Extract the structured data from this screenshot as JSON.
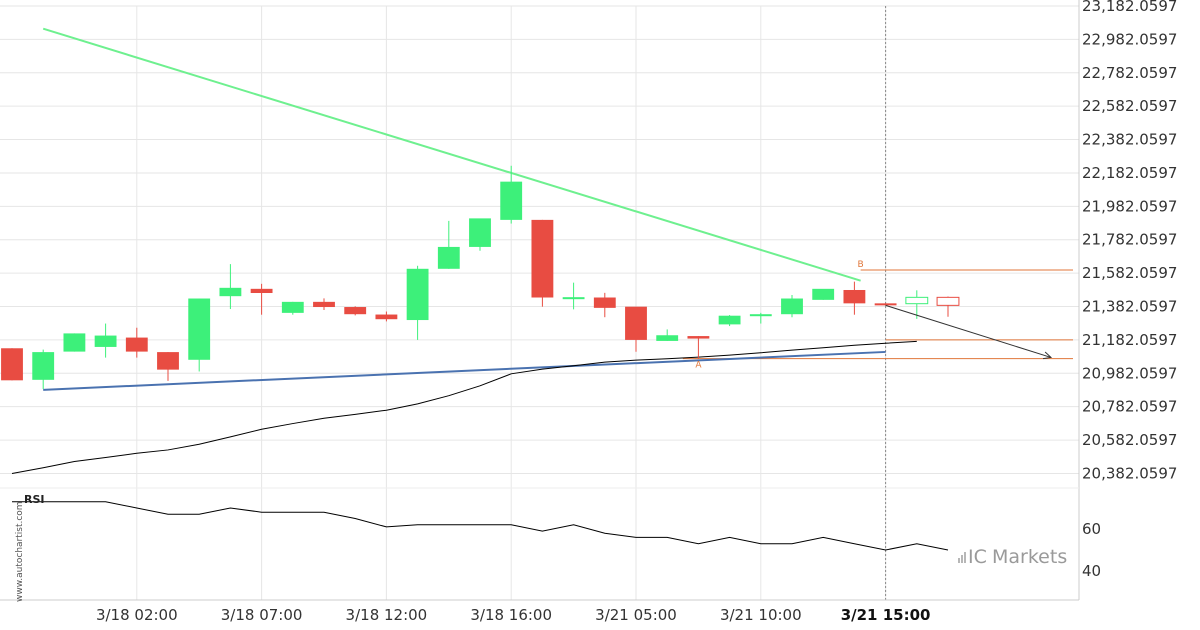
{
  "colors": {
    "up": "#3df07a",
    "down": "#e84c42",
    "resistance": "#6ef08f",
    "support": "#4a72b0",
    "moving_average": "#000000",
    "rsi_line": "#000000",
    "pattern_lines": "#e0763a",
    "forecast_arrow": "#333333",
    "grid": "#e6e6e6",
    "marker": "#888888"
  },
  "watermark": "www.autochartist.com",
  "brand": {
    "prefix": "IC",
    "suffix": "Markets",
    "icon": "bar-chart-icon"
  },
  "rsi_panel": {
    "label": "RSI",
    "ticks": [
      "60",
      "40"
    ]
  },
  "pattern_points": {
    "a": "A",
    "b": "B"
  },
  "chart_data": {
    "type": "candlestick",
    "ylim": [
      20307,
      23182.0597
    ],
    "yticks": [
      "23,182.0597",
      "22,982.0597",
      "22,782.0597",
      "22,582.0597",
      "22,382.0597",
      "22,182.0597",
      "21,982.0597",
      "21,782.0597",
      "21,582.0597",
      "21,382.0597",
      "21,182.0597",
      "20,982.0597",
      "20,782.0597",
      "20,582.0597",
      "20,382.0597"
    ],
    "xticks": [
      {
        "label": "3/18 02:00",
        "index": 4,
        "bold": false
      },
      {
        "label": "3/18 07:00",
        "index": 8,
        "bold": false
      },
      {
        "label": "3/18 12:00",
        "index": 12,
        "bold": false
      },
      {
        "label": "3/18 16:00",
        "index": 16,
        "bold": false
      },
      {
        "label": "3/21 05:00",
        "index": 20,
        "bold": false
      },
      {
        "label": "3/21 10:00",
        "index": 24,
        "bold": false
      },
      {
        "label": "3/21 15:00",
        "index": 28,
        "bold": true
      }
    ],
    "candles": [
      {
        "o": 21132,
        "h": 21132,
        "l": 20940,
        "c": 20940
      },
      {
        "o": 20943,
        "h": 21124,
        "l": 20888,
        "c": 21109
      },
      {
        "o": 21112,
        "h": 21221,
        "l": 21112,
        "c": 21221
      },
      {
        "o": 21140,
        "h": 21280,
        "l": 21076,
        "c": 21208
      },
      {
        "o": 21196,
        "h": 21255,
        "l": 21076,
        "c": 21112
      },
      {
        "o": 21109,
        "h": 21109,
        "l": 20937,
        "c": 21004
      },
      {
        "o": 21063,
        "h": 21430,
        "l": 20993,
        "c": 21430
      },
      {
        "o": 21444,
        "h": 21636,
        "l": 21367,
        "c": 21494
      },
      {
        "o": 21488,
        "h": 21518,
        "l": 21333,
        "c": 21463
      },
      {
        "o": 21344,
        "h": 21410,
        "l": 21333,
        "c": 21410
      },
      {
        "o": 21410,
        "h": 21431,
        "l": 21361,
        "c": 21379
      },
      {
        "o": 21379,
        "h": 21383,
        "l": 21329,
        "c": 21336
      },
      {
        "o": 21334,
        "h": 21352,
        "l": 21293,
        "c": 21306
      },
      {
        "o": 21301,
        "h": 21626,
        "l": 21182,
        "c": 21608
      },
      {
        "o": 21608,
        "h": 21895,
        "l": 21608,
        "c": 21739
      },
      {
        "o": 21739,
        "h": 21905,
        "l": 21716,
        "c": 21910
      },
      {
        "o": 21901,
        "h": 22225,
        "l": 21879,
        "c": 22130
      },
      {
        "o": 21901,
        "h": 21901,
        "l": 21381,
        "c": 21436
      },
      {
        "o": 21428,
        "h": 21525,
        "l": 21365,
        "c": 21438
      },
      {
        "o": 21436,
        "h": 21464,
        "l": 21318,
        "c": 21374
      },
      {
        "o": 21381,
        "h": 21381,
        "l": 21111,
        "c": 21182
      },
      {
        "o": 21176,
        "h": 21245,
        "l": 21176,
        "c": 21210
      },
      {
        "o": 21205,
        "h": 21205,
        "l": 21070,
        "c": 21190
      },
      {
        "o": 21275,
        "h": 21331,
        "l": 21265,
        "c": 21327
      },
      {
        "o": 21334,
        "h": 21344,
        "l": 21280,
        "c": 21336
      },
      {
        "o": 21336,
        "h": 21451,
        "l": 21318,
        "c": 21430
      },
      {
        "o": 21422,
        "h": 21485,
        "l": 21422,
        "c": 21488
      },
      {
        "o": 21481,
        "h": 21531,
        "l": 21333,
        "c": 21401
      },
      {
        "o": 21401,
        "h": 21401,
        "l": 21389,
        "c": 21389
      },
      {
        "o": 21399,
        "h": 21479,
        "l": 21308,
        "c": 21437
      },
      {
        "o": 21437,
        "h": 21442,
        "l": 21321,
        "c": 21389
      }
    ],
    "candle_width_fraction": 0.7,
    "moving_average": [
      20382,
      20416,
      20454,
      20478,
      20503,
      20523,
      20557,
      20601,
      20647,
      20681,
      20713,
      20736,
      20761,
      20799,
      20848,
      20907,
      20979,
      21007,
      21027,
      21049,
      21061,
      21069,
      21079,
      21091,
      21105,
      21121,
      21135,
      21150,
      21162,
      21173
    ],
    "resistance": [
      {
        "i": 1,
        "v": 23046
      },
      {
        "i": 27.2,
        "v": 21537
      }
    ],
    "support": [
      {
        "i": 1,
        "v": 20883
      },
      {
        "i": 28,
        "v": 21110
      }
    ],
    "pattern_levels": [
      {
        "level": 21601,
        "from": 27.2
      },
      {
        "level": 21182,
        "from": 28
      },
      {
        "level": 21070,
        "from": 21.5
      }
    ],
    "forecast": {
      "from": {
        "i": 28,
        "v": 21389
      },
      "to": {
        "i": 33.3,
        "v": 21077
      }
    },
    "point_a": {
      "i": 22,
      "v": 21070
    },
    "point_b": {
      "i": 27.2,
      "v": 21601
    },
    "current_marker_index": 28,
    "rsi": {
      "ylim": [
        20,
        100
      ],
      "values": [
        73,
        73,
        73,
        73,
        70,
        67,
        67,
        70,
        68,
        68,
        68,
        65,
        61,
        62,
        62,
        62,
        62,
        59,
        62,
        58,
        56,
        56,
        53,
        56,
        53,
        53,
        56,
        53,
        50,
        53,
        50
      ]
    }
  }
}
